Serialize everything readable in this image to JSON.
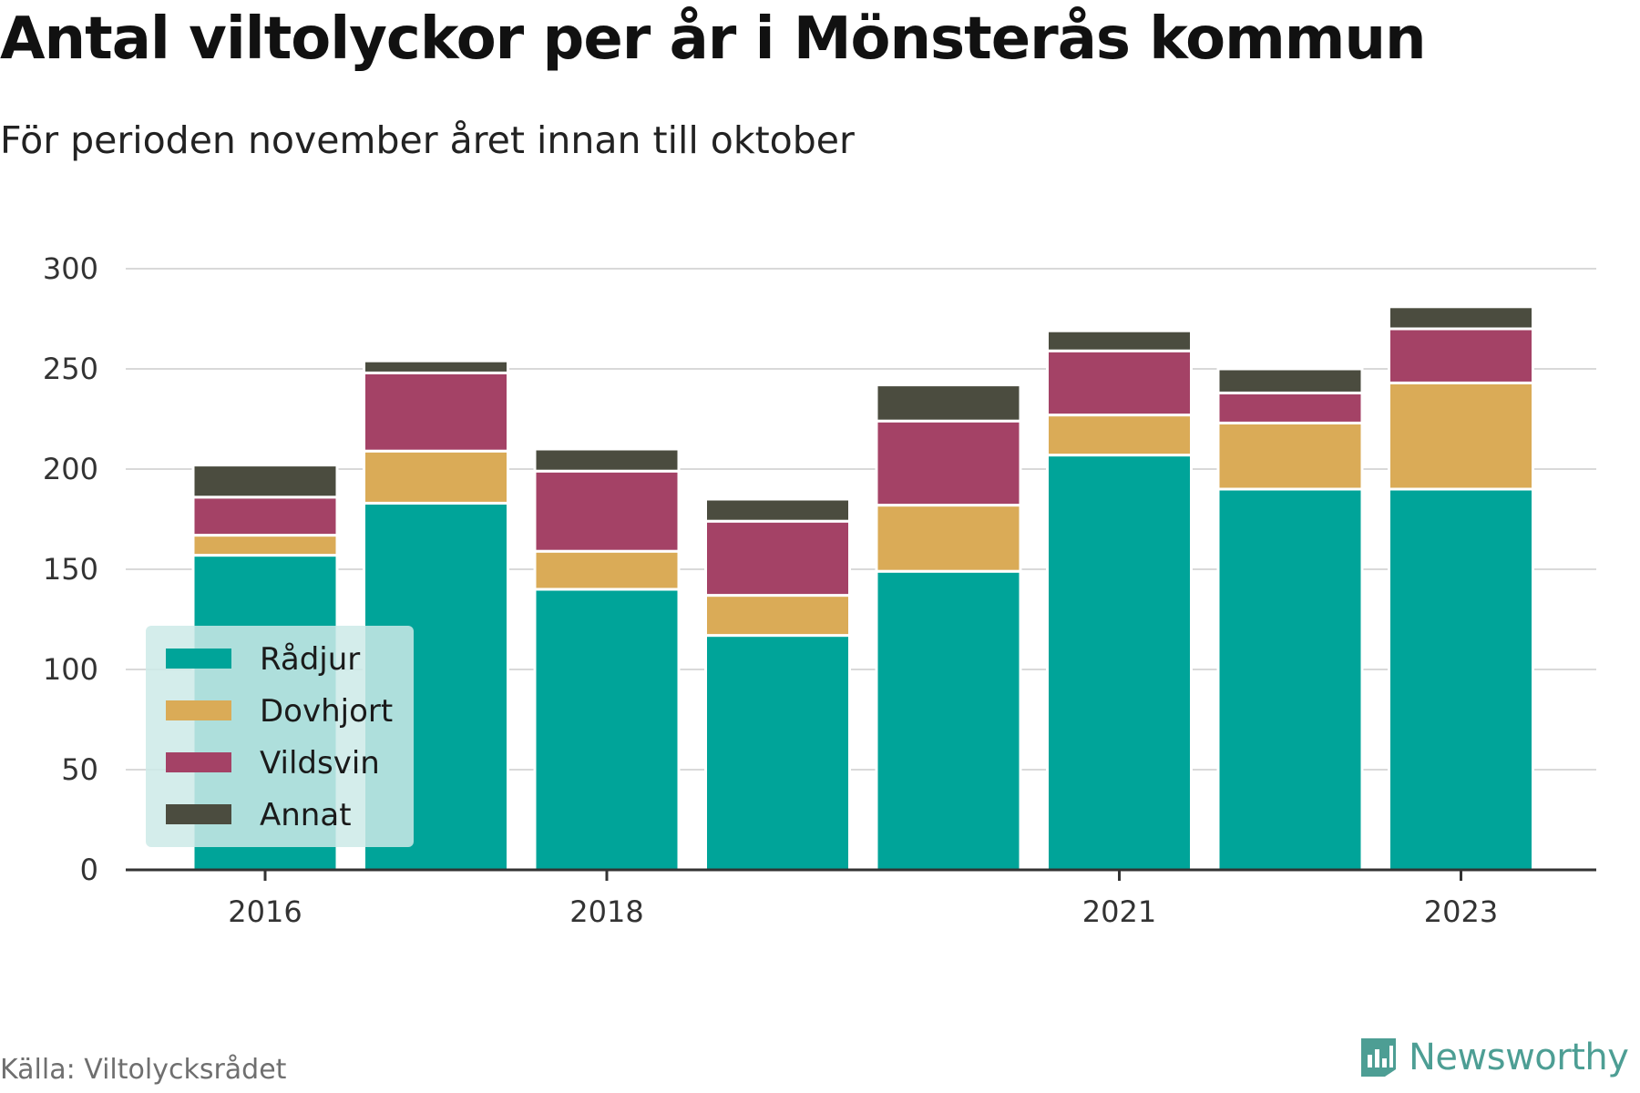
{
  "header": {
    "title": "Antal viltolyckor per år i Mönsterås kommun",
    "subtitle": "För perioden november året innan till oktober"
  },
  "footer": {
    "source": "Källa: Viltolycksrådet",
    "brand": "Newsworthy",
    "brand_icon": "bar-chart-document-icon"
  },
  "colors": {
    "rådjur": "#00a499",
    "dovhjort": "#daab57",
    "vildsvin": "#a44266",
    "annat": "#4b4c3f",
    "grid": "#d9d9d9",
    "axis": "#333333",
    "legend_bg": "#cdeae8",
    "brand": "#4d9e94"
  },
  "chart_data": {
    "type": "bar",
    "stacked": true,
    "categories": [
      "2016",
      "2017",
      "2018",
      "2019",
      "2020",
      "2021",
      "2022",
      "2023"
    ],
    "x_tick_labels": [
      "2016",
      "2018",
      "2021",
      "2023"
    ],
    "series": [
      {
        "name": "Rådjur",
        "values": [
          157,
          183,
          140,
          117,
          149,
          207,
          190,
          190
        ]
      },
      {
        "name": "Dovhjort",
        "values": [
          10,
          26,
          19,
          20,
          33,
          20,
          33,
          53
        ]
      },
      {
        "name": "Vildsvin",
        "values": [
          19,
          39,
          40,
          37,
          42,
          32,
          15,
          27
        ]
      },
      {
        "name": "Annat",
        "values": [
          16,
          6,
          11,
          11,
          18,
          10,
          12,
          11
        ]
      }
    ],
    "ylim": [
      0,
      300
    ],
    "yticks": [
      0,
      50,
      100,
      150,
      200,
      250,
      300
    ],
    "grid": true,
    "legend": "lower-left, inside plot",
    "title": "Antal viltolyckor per år i Mönsterås kommun",
    "subtitle": "För perioden november året innan till oktober",
    "xlabel": "",
    "ylabel": ""
  }
}
